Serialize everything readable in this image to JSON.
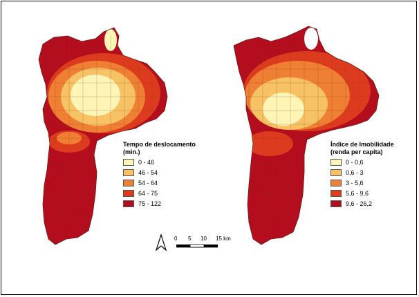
{
  "maps": [
    {
      "legend": {
        "title_line1": "Tempo de deslocamento",
        "title_line2": "(min.)",
        "classes": [
          {
            "label": "0 - 46",
            "color": "#fdf5b6"
          },
          {
            "label": "46 - 54",
            "color": "#f7c263"
          },
          {
            "label": "54 - 64",
            "color": "#ef7f33"
          },
          {
            "label": "64 - 75",
            "color": "#dd3b1e"
          },
          {
            "label": "75 - 122",
            "color": "#b30d1e"
          }
        ]
      }
    },
    {
      "legend": {
        "title_line1": "Índice de Imobilidade",
        "title_line2": "(renda per capita)",
        "classes": [
          {
            "label": "0 - 0,6",
            "color": "#fdf5b6"
          },
          {
            "label": "0,6 - 3",
            "color": "#f7c263"
          },
          {
            "label": "3 - 5,6",
            "color": "#ef7f33"
          },
          {
            "label": "5,6 - 9,6",
            "color": "#dd3b1e"
          },
          {
            "label": "9,6 - 26,2",
            "color": "#b30d1e"
          }
        ]
      }
    }
  ],
  "scale_bar": {
    "ticks": [
      "0",
      "5",
      "10",
      "15 km"
    ]
  },
  "north_arrow": {
    "icon": "north-arrow-icon"
  }
}
